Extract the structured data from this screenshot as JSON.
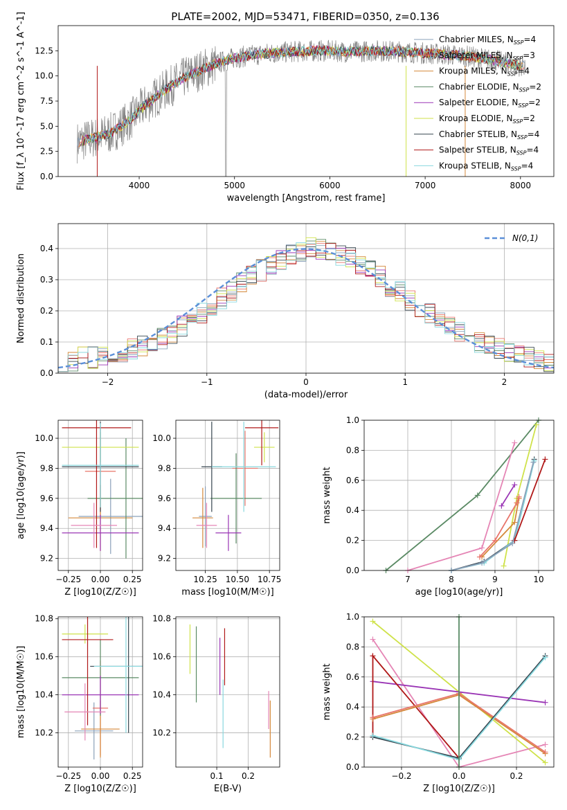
{
  "figure_title": "PLATE=2002, MJD=53471, FIBERID=0350, z=0.136",
  "colors": {
    "Chabrier MILES": "#8aa0b8",
    "Salpeter MILES": "#e8746a",
    "Kroupa MILES": "#d4883a",
    "Chabrier ELODIE": "#5a8a64",
    "Salpeter ELODIE": "#9a35b5",
    "Kroupa ELODIE": "#cfe24a",
    "Chabrier STELIB": "#36454f",
    "Salpeter STELIB": "#b01818",
    "Kroupa STELIB": "#88d8de",
    "extra_pink": "#e585b5",
    "normal_curve": "#5b8fd8",
    "grid": "#b0b0b0"
  },
  "chart_data": [
    {
      "id": "spectrum",
      "type": "line",
      "title": "PLATE=2002, MJD=53471, FIBERID=0350, z=0.136",
      "xlabel": "wavelength [Angstrom, rest frame]",
      "ylabel": "Flux [f_λ 10^-17 erg cm^-2 s^-1 A^-1]",
      "xlim": [
        3150,
        8350
      ],
      "ylim": [
        0,
        15
      ],
      "xticks": [
        4000,
        5000,
        6000,
        7000,
        8000
      ],
      "yticks": [
        0.0,
        2.5,
        5.0,
        7.5,
        10.0,
        12.5
      ],
      "grid": false,
      "legend_position": "top-right",
      "legend": [
        "Chabrier MILES, N_SSP=4",
        "Salpeter MILES, N_SSP=3",
        "Kroupa MILES, N_SSP=4",
        "Chabrier ELODIE, N_SSP=2",
        "Salpeter ELODIE, N_SSP=2",
        "Kroupa ELODIE, N_SSP=2",
        "Chabrier STELIB, N_SSP=4",
        "Salpeter STELIB, N_SSP=4",
        "Kroupa STELIB, N_SSP=4"
      ],
      "data_series": {
        "name": "data",
        "color": "#808080",
        "x_range": [
          3350,
          8050
        ]
      },
      "model_envelope": {
        "x": [
          3350,
          3500,
          3700,
          3900,
          4050,
          4300,
          4500,
          4800,
          5000,
          5300,
          5600,
          5900,
          6200,
          6500,
          6800,
          7100,
          7400,
          7700,
          8000
        ],
        "y": [
          3.4,
          3.8,
          4.3,
          5.6,
          7.0,
          8.8,
          10.0,
          11.2,
          11.8,
          12.2,
          12.4,
          12.5,
          12.4,
          12.5,
          12.4,
          12.2,
          12.0,
          11.6,
          11.0
        ]
      }
    },
    {
      "id": "residuals",
      "type": "histogram",
      "xlabel": "(data-model)/error",
      "ylabel": "Normed distribution",
      "xlim": [
        -2.5,
        2.5
      ],
      "ylim": [
        0,
        0.48
      ],
      "xticks": [
        -2,
        -1,
        0,
        1,
        2
      ],
      "yticks": [
        0.0,
        0.1,
        0.2,
        0.3,
        0.4
      ],
      "grid": true,
      "legend_position": "top-right",
      "legend": [
        "N(0,1)"
      ],
      "bins": [
        -2.5,
        2.5,
        50
      ],
      "envelope": [
        0.03,
        0.04,
        0.05,
        0.05,
        0.06,
        0.06,
        0.07,
        0.08,
        0.09,
        0.1,
        0.11,
        0.13,
        0.15,
        0.17,
        0.19,
        0.21,
        0.24,
        0.26,
        0.29,
        0.31,
        0.33,
        0.35,
        0.36,
        0.38,
        0.39,
        0.4,
        0.4,
        0.39,
        0.38,
        0.37,
        0.35,
        0.33,
        0.31,
        0.28,
        0.26,
        0.23,
        0.21,
        0.19,
        0.17,
        0.15,
        0.13,
        0.11,
        0.1,
        0.09,
        0.08,
        0.07,
        0.06,
        0.05,
        0.04,
        0.03
      ]
    },
    {
      "id": "age_vs_Z",
      "type": "errorbar",
      "xlabel": "Z [log10(Z/Z☉)]",
      "ylabel": "age [log10(age/yr)]",
      "xlim": [
        -0.33,
        0.33
      ],
      "ylim": [
        9.12,
        10.12
      ],
      "xticks": [
        -0.25,
        0.0,
        0.25
      ],
      "xtick_labels": [
        "−0.25",
        "0.00",
        "0.25"
      ],
      "yticks": [
        9.2,
        9.4,
        9.6,
        9.8,
        10.0
      ],
      "grid": true,
      "points": [
        {
          "model": "Chabrier MILES",
          "x": 0.08,
          "y": 9.48,
          "xerr": 0.25,
          "yerr": 0.25
        },
        {
          "model": "Salpeter MILES",
          "x": 0.0,
          "y": 9.78,
          "xerr": 0.12,
          "yerr": 0.3
        },
        {
          "model": "Kroupa MILES",
          "x": 0.0,
          "y": 9.47,
          "xerr": 0.25,
          "yerr": 0.22
        },
        {
          "model": "Chabrier ELODIE",
          "x": 0.2,
          "y": 9.6,
          "xerr": 0.3,
          "yerr": 0.4
        },
        {
          "model": "Salpeter ELODIE",
          "x": 0.0,
          "y": 9.37,
          "xerr": 0.3,
          "yerr": 0.12
        },
        {
          "model": "Kroupa ELODIE",
          "x": 0.0,
          "y": 9.94,
          "xerr": 0.3,
          "yerr": 0.1
        },
        {
          "model": "Chabrier STELIB",
          "x": 0.0,
          "y": 9.81,
          "xerr": 0.3,
          "yerr": 0.3
        },
        {
          "model": "Salpeter STELIB",
          "x": -0.03,
          "y": 10.07,
          "xerr": 0.27,
          "yerr": 0.8
        },
        {
          "model": "Kroupa STELIB",
          "x": 0.0,
          "y": 9.82,
          "xerr": 0.3,
          "yerr": 0.28
        },
        {
          "model": "extra",
          "x": -0.05,
          "y": 9.42,
          "xerr": 0.18,
          "yerr": 0.15
        }
      ]
    },
    {
      "id": "age_vs_mass",
      "type": "errorbar",
      "xlabel": "mass [log10(M/M☉)]",
      "xlim": [
        10.02,
        10.83
      ],
      "ylim": [
        9.12,
        10.12
      ],
      "xticks": [
        10.25,
        10.5,
        10.75
      ],
      "xtick_labels": [
        "10.25",
        "10.50",
        "10.75"
      ],
      "yticks": [
        9.2,
        9.4,
        9.6,
        9.8,
        10.0
      ],
      "grid": true,
      "points": [
        {
          "model": "Chabrier MILES",
          "x": 10.25,
          "y": 9.48,
          "xerr": 0.05,
          "yerr": 0.2
        },
        {
          "model": "Salpeter MILES",
          "x": 10.56,
          "y": 9.8,
          "xerr": 0.1,
          "yerr": 0.25
        },
        {
          "model": "Kroupa MILES",
          "x": 10.23,
          "y": 9.47,
          "xerr": 0.08,
          "yerr": 0.2
        },
        {
          "model": "Chabrier ELODIE",
          "x": 10.49,
          "y": 9.6,
          "xerr": 0.2,
          "yerr": 0.3
        },
        {
          "model": "Salpeter ELODIE",
          "x": 10.43,
          "y": 9.37,
          "xerr": 0.1,
          "yerr": 0.12
        },
        {
          "model": "Kroupa ELODIE",
          "x": 10.71,
          "y": 9.94,
          "xerr": 0.08,
          "yerr": 0.1
        },
        {
          "model": "Chabrier STELIB",
          "x": 10.3,
          "y": 9.81,
          "xerr": 0.08,
          "yerr": 0.3
        },
        {
          "model": "Salpeter STELIB",
          "x": 10.69,
          "y": 10.07,
          "xerr": 0.13,
          "yerr": 0.25
        },
        {
          "model": "Kroupa STELIB",
          "x": 10.55,
          "y": 9.81,
          "xerr": 0.25,
          "yerr": 0.3
        },
        {
          "model": "extra",
          "x": 10.26,
          "y": 9.42,
          "xerr": 0.08,
          "yerr": 0.15
        }
      ]
    },
    {
      "id": "massweight_vs_age",
      "type": "line",
      "xlabel": "age [log10(age/yr)]",
      "ylabel": "mass weight",
      "xlim": [
        6.0,
        10.35
      ],
      "ylim": [
        0.0,
        1.0
      ],
      "xticks": [
        7,
        8,
        9,
        10
      ],
      "yticks": [
        0.0,
        0.2,
        0.4,
        0.6,
        0.8,
        1.0
      ],
      "grid": true,
      "series": [
        {
          "model": "Chabrier ELODIE",
          "x": [
            6.5,
            8.6,
            10.0
          ],
          "y": [
            0.0,
            0.5,
            1.0
          ]
        },
        {
          "model": "Kroupa ELODIE",
          "x": [
            9.2,
            9.5,
            9.95
          ],
          "y": [
            0.03,
            0.48,
            0.97
          ]
        },
        {
          "model": "extra",
          "x": [
            7.0,
            8.7,
            9.45
          ],
          "y": [
            0.0,
            0.15,
            0.85
          ]
        },
        {
          "model": "Salpeter ELODIE",
          "x": [
            9.15,
            9.45
          ],
          "y": [
            0.43,
            0.57
          ]
        },
        {
          "model": "Kroupa MILES",
          "x": [
            8.7,
            9.45,
            9.55
          ],
          "y": [
            0.09,
            0.32,
            0.48
          ]
        },
        {
          "model": "Salpeter MILES",
          "x": [
            8.65,
            9.0,
            9.5,
            9.55
          ],
          "y": [
            0.09,
            0.2,
            0.45,
            0.49
          ]
        },
        {
          "model": "Chabrier STELIB",
          "x": [
            8.0,
            8.75,
            9.45,
            9.9
          ],
          "y": [
            0.0,
            0.06,
            0.2,
            0.74
          ]
        },
        {
          "model": "Kroupa STELIB",
          "x": [
            8.0,
            8.75,
            9.45,
            9.9
          ],
          "y": [
            0.0,
            0.05,
            0.2,
            0.73
          ]
        },
        {
          "model": "Salpeter STELIB",
          "x": [
            9.45,
            10.15
          ],
          "y": [
            0.2,
            0.74
          ]
        },
        {
          "model": "Chabrier MILES",
          "x": [
            8.0,
            8.7,
            9.4,
            9.88
          ],
          "y": [
            0.0,
            0.05,
            0.18,
            0.72
          ]
        }
      ]
    },
    {
      "id": "mass_vs_Z",
      "type": "errorbar",
      "xlabel": "Z [log10(Z/Z☉)]",
      "ylabel": "mass [log10(M/M☉)]",
      "xlim": [
        -0.33,
        0.33
      ],
      "ylim": [
        10.02,
        10.81
      ],
      "xticks": [
        -0.25,
        0.0,
        0.25
      ],
      "xtick_labels": [
        "−0.25",
        "0.00",
        "0.25"
      ],
      "yticks": [
        10.2,
        10.4,
        10.6,
        10.8
      ],
      "grid": true,
      "points": [
        {
          "model": "Chabrier MILES",
          "x": -0.05,
          "y": 10.21,
          "xerr": 0.15,
          "yerr": 0.15
        },
        {
          "model": "Salpeter MILES",
          "x": 0.0,
          "y": 10.33,
          "xerr": 0.06,
          "yerr": 0.25
        },
        {
          "model": "Kroupa MILES",
          "x": 0.0,
          "y": 10.22,
          "xerr": 0.15,
          "yerr": 0.15
        },
        {
          "model": "Chabrier ELODIE",
          "x": 0.0,
          "y": 10.49,
          "xerr": 0.3,
          "yerr": 0.2
        },
        {
          "model": "Salpeter ELODIE",
          "x": 0.0,
          "y": 10.4,
          "xerr": 0.3,
          "yerr": 0.1
        },
        {
          "model": "Kroupa ELODIE",
          "x": -0.12,
          "y": 10.72,
          "xerr": 0.18,
          "yerr": 0.05
        },
        {
          "model": "Chabrier STELIB",
          "x": 0.22,
          "y": 10.55,
          "xerr": 0.3,
          "yerr": 0.35
        },
        {
          "model": "Salpeter STELIB",
          "x": -0.1,
          "y": 10.69,
          "xerr": 0.2,
          "yerr": 0.45
        },
        {
          "model": "Kroupa STELIB",
          "x": 0.2,
          "y": 10.55,
          "xerr": 0.25,
          "yerr": 0.35
        },
        {
          "model": "extra",
          "x": -0.12,
          "y": 10.31,
          "xerr": 0.16,
          "yerr": 0.15
        }
      ]
    },
    {
      "id": "mass_vs_ebv",
      "type": "errorbar",
      "xlabel": "E(B-V)",
      "xlim": [
        -0.03,
        0.3
      ],
      "ylim": [
        10.02,
        10.81
      ],
      "xticks": [
        0.1,
        0.2
      ],
      "yticks": [
        10.2,
        10.4,
        10.6,
        10.8
      ],
      "grid": true,
      "points": [
        {
          "model": "Kroupa ELODIE",
          "x": 0.015,
          "y": 10.64,
          "xerr": 0.0,
          "yerr": 0.13
        },
        {
          "model": "Chabrier ELODIE",
          "x": 0.035,
          "y": 10.56,
          "xerr": 0.0,
          "yerr": 0.2
        },
        {
          "model": "Salpeter ELODIE",
          "x": 0.11,
          "y": 10.55,
          "xerr": 0.0,
          "yerr": 0.15
        },
        {
          "model": "Salpeter STELIB",
          "x": 0.125,
          "y": 10.6,
          "xerr": 0.0,
          "yerr": 0.15
        },
        {
          "model": "Kroupa STELIB",
          "x": 0.12,
          "y": 10.3,
          "xerr": 0.0,
          "yerr": 0.18
        },
        {
          "model": "extra",
          "x": 0.265,
          "y": 10.32,
          "xerr": 0.0,
          "yerr": 0.1
        },
        {
          "model": "Kroupa MILES",
          "x": 0.27,
          "y": 10.22,
          "xerr": 0.0,
          "yerr": 0.15
        }
      ]
    },
    {
      "id": "massweight_vs_Z",
      "type": "line",
      "xlabel": "Z [log10(Z/Z☉)]",
      "ylabel": "mass weight",
      "xlim": [
        -0.33,
        0.33
      ],
      "ylim": [
        0.0,
        1.0
      ],
      "xticks": [
        -0.2,
        0.0,
        0.2
      ],
      "xtick_labels": [
        "−0.2",
        "0.0",
        "0.2"
      ],
      "yticks": [
        0.0,
        0.2,
        0.4,
        0.6,
        0.8,
        1.0
      ],
      "grid": true,
      "series": [
        {
          "model": "Kroupa ELODIE",
          "x": [
            -0.3,
            0.0,
            0.3
          ],
          "y": [
            0.97,
            0.5,
            0.03
          ]
        },
        {
          "model": "extra",
          "x": [
            -0.3,
            0.0,
            0.3
          ],
          "y": [
            0.85,
            0.0,
            0.15
          ]
        },
        {
          "model": "Salpeter ELODIE",
          "x": [
            -0.3,
            0.3
          ],
          "y": [
            0.57,
            0.43
          ]
        },
        {
          "model": "Salpeter STELIB",
          "x": [
            -0.3,
            -0.3,
            0.0
          ],
          "y": [
            0.2,
            0.74,
            0.06
          ]
        },
        {
          "model": "Kroupa MILES",
          "x": [
            -0.3,
            0.0,
            0.3
          ],
          "y": [
            0.32,
            0.48,
            0.09
          ]
        },
        {
          "model": "Salpeter MILES",
          "x": [
            -0.3,
            0.0,
            0.3
          ],
          "y": [
            0.33,
            0.49,
            0.1
          ]
        },
        {
          "model": "Chabrier STELIB",
          "x": [
            -0.3,
            0.0,
            0.3
          ],
          "y": [
            0.2,
            0.06,
            0.74
          ]
        },
        {
          "model": "Kroupa STELIB",
          "x": [
            -0.3,
            0.0,
            0.3
          ],
          "y": [
            0.21,
            0.05,
            0.73
          ]
        },
        {
          "model": "Chabrier ELODIE",
          "x": [
            0.0,
            0.0
          ],
          "y": [
            0.0,
            1.0
          ]
        }
      ]
    }
  ]
}
